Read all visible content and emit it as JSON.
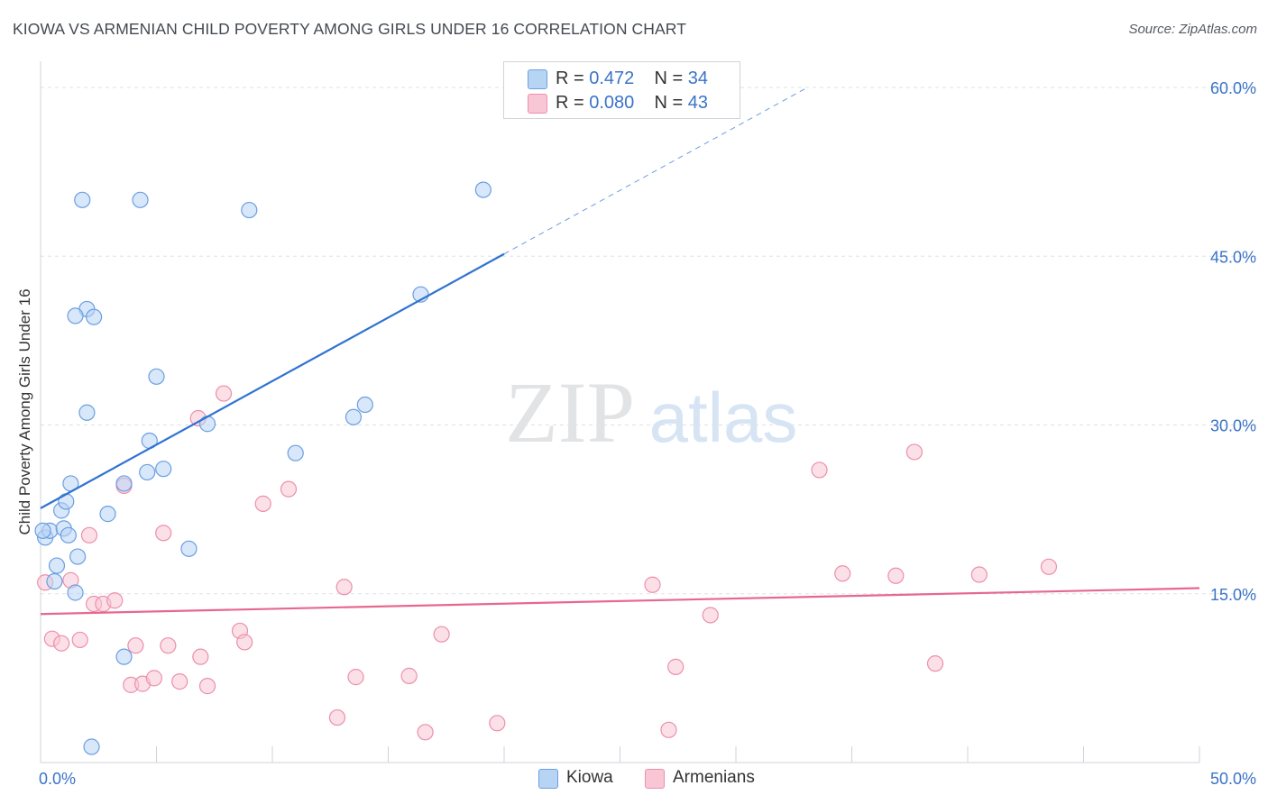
{
  "title": "KIOWA VS ARMENIAN CHILD POVERTY AMONG GIRLS UNDER 16 CORRELATION CHART",
  "source": "Source: ZipAtlas.com",
  "watermark": {
    "zip": "ZIP",
    "atlas": "atlas"
  },
  "colors": {
    "kiowa_fill": "#b8d4f5",
    "kiowa_stroke": "#6a9fe0",
    "kiowa_line": "#2f73d1",
    "armenian_fill": "#f9c6d5",
    "armenian_stroke": "#ec8fac",
    "armenian_line": "#e7688f",
    "tick_label": "#3a73c8",
    "grid": "#dde1e6"
  },
  "legend": {
    "rows": [
      {
        "r_label": "R =",
        "r_value": "0.472",
        "n_label": "N =",
        "n_value": "34"
      },
      {
        "r_label": "R =",
        "r_value": "0.080",
        "n_label": "N =",
        "n_value": "43"
      }
    ]
  },
  "bottom_legend": {
    "kiowa": "Kiowa",
    "armenians": "Armenians"
  },
  "chart_data": {
    "type": "scatter",
    "title": "KIOWA VS ARMENIAN CHILD POVERTY AMONG GIRLS UNDER 16 CORRELATION CHART",
    "xlabel": "",
    "ylabel": "Child Poverty Among Girls Under 16",
    "xlim": [
      0,
      50
    ],
    "ylim": [
      0,
      60
    ],
    "x_tick_labels": [
      {
        "value": 0,
        "label": "0.0%"
      },
      {
        "value": 50,
        "label": "50.0%"
      }
    ],
    "y_tick_labels": [
      {
        "value": 60,
        "label": "60.0%"
      },
      {
        "value": 45,
        "label": "45.0%"
      },
      {
        "value": 30,
        "label": "30.0%"
      },
      {
        "value": 15,
        "label": "15.0%"
      }
    ],
    "grid": true,
    "legend_position": "top-center",
    "series": [
      {
        "name": "Kiowa",
        "r": 0.472,
        "n": 34,
        "points": [
          [
            0.2,
            20.0
          ],
          [
            0.4,
            20.6
          ],
          [
            0.6,
            16.1
          ],
          [
            0.7,
            17.5
          ],
          [
            0.9,
            22.4
          ],
          [
            1.0,
            20.8
          ],
          [
            1.1,
            23.2
          ],
          [
            1.2,
            20.2
          ],
          [
            1.3,
            24.8
          ],
          [
            1.5,
            15.1
          ],
          [
            1.6,
            18.3
          ],
          [
            1.8,
            50.0
          ],
          [
            2.0,
            31.1
          ],
          [
            2.0,
            40.3
          ],
          [
            2.3,
            39.6
          ],
          [
            2.2,
            1.4
          ],
          [
            1.5,
            39.7
          ],
          [
            2.9,
            22.1
          ],
          [
            3.6,
            24.8
          ],
          [
            3.6,
            9.4
          ],
          [
            4.3,
            50.0
          ],
          [
            4.6,
            25.8
          ],
          [
            4.7,
            28.6
          ],
          [
            5.0,
            34.3
          ],
          [
            5.3,
            26.1
          ],
          [
            6.4,
            19.0
          ],
          [
            7.2,
            30.1
          ],
          [
            9.0,
            49.1
          ],
          [
            11.0,
            27.5
          ],
          [
            13.5,
            30.7
          ],
          [
            14.0,
            31.8
          ],
          [
            16.4,
            41.6
          ],
          [
            19.1,
            50.9
          ],
          [
            0.1,
            20.6
          ]
        ],
        "trend": {
          "x0": 0,
          "y0": 22.6,
          "x1": 20.0,
          "y1": 45.2,
          "dashed_x1": 33.0,
          "dashed_y1": 59.9
        }
      },
      {
        "name": "Armenians",
        "r": 0.08,
        "n": 43,
        "points": [
          [
            0.2,
            16.0
          ],
          [
            0.5,
            11.0
          ],
          [
            0.9,
            10.6
          ],
          [
            1.3,
            16.2
          ],
          [
            1.7,
            10.9
          ],
          [
            2.1,
            20.2
          ],
          [
            2.3,
            14.1
          ],
          [
            2.7,
            14.1
          ],
          [
            3.2,
            14.4
          ],
          [
            3.6,
            24.6
          ],
          [
            3.9,
            6.9
          ],
          [
            4.1,
            10.4
          ],
          [
            4.4,
            7.0
          ],
          [
            4.9,
            7.5
          ],
          [
            5.3,
            20.4
          ],
          [
            5.5,
            10.4
          ],
          [
            6.0,
            7.2
          ],
          [
            6.8,
            30.6
          ],
          [
            6.9,
            9.4
          ],
          [
            7.2,
            6.8
          ],
          [
            7.9,
            32.8
          ],
          [
            8.6,
            11.7
          ],
          [
            8.8,
            10.7
          ],
          [
            9.6,
            23.0
          ],
          [
            10.7,
            24.3
          ],
          [
            12.8,
            4.0
          ],
          [
            13.1,
            15.6
          ],
          [
            13.6,
            7.6
          ],
          [
            15.9,
            7.7
          ],
          [
            16.6,
            2.7
          ],
          [
            17.3,
            11.4
          ],
          [
            19.7,
            3.5
          ],
          [
            26.4,
            15.8
          ],
          [
            27.1,
            2.9
          ],
          [
            27.4,
            8.5
          ],
          [
            28.9,
            13.1
          ],
          [
            33.6,
            26.0
          ],
          [
            34.6,
            16.8
          ],
          [
            36.9,
            16.6
          ],
          [
            37.7,
            27.6
          ],
          [
            38.6,
            8.8
          ],
          [
            40.5,
            16.7
          ],
          [
            43.5,
            17.4
          ]
        ],
        "trend": {
          "x0": 0,
          "y0": 13.2,
          "x1": 50,
          "y1": 15.5
        }
      }
    ]
  }
}
